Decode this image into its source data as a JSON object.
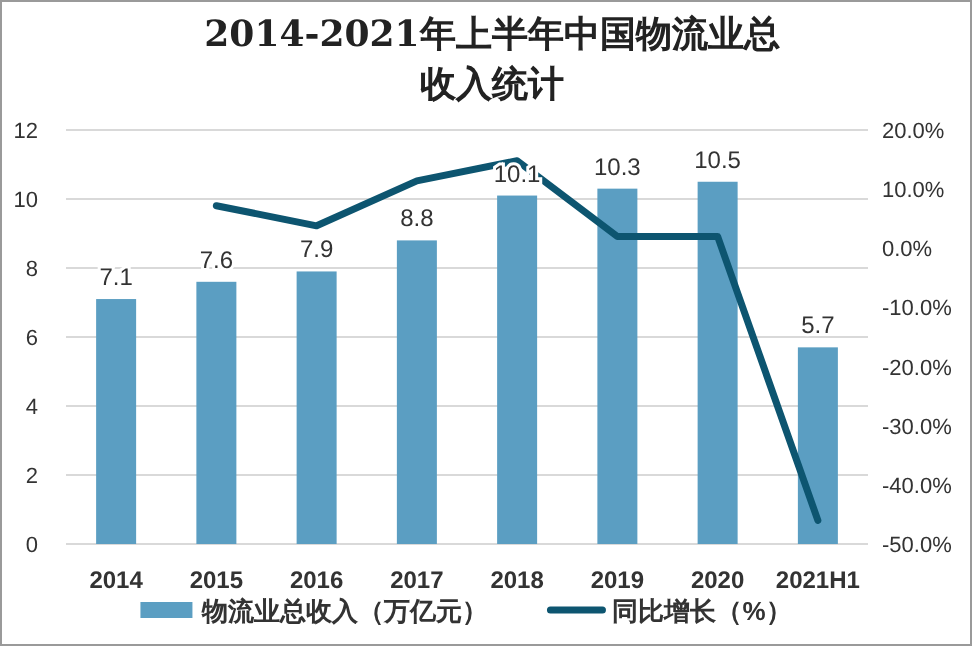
{
  "chart_data": {
    "type": "bar",
    "title": "2014-2021年上半年中国物流业总收入统计",
    "categories": [
      "2014",
      "2015",
      "2016",
      "2017",
      "2018",
      "2019",
      "2020",
      "2021H1"
    ],
    "series": [
      {
        "name": "物流业总收入（万亿元）",
        "color": "#5b9ec2",
        "values": [
          7.1,
          7.6,
          7.9,
          8.8,
          10.1,
          10.3,
          10.5,
          5.7
        ],
        "value_labels": [
          "7.1",
          "7.6",
          "7.9",
          "8.8",
          "10.1",
          "10.3",
          "10.5",
          "5.7"
        ]
      },
      {
        "name": "同比增长（%）",
        "type": "line",
        "axis": "y2",
        "color": "#0d5570",
        "values": [
          null,
          7.2,
          3.8,
          11.4,
          14.8,
          2.0,
          2.0,
          -46.0
        ]
      }
    ],
    "ylim": [
      0,
      12
    ],
    "yticks": [
      0,
      2,
      4,
      6,
      8,
      10,
      12
    ],
    "y2lim": [
      -50,
      20
    ],
    "y2ticks": [
      {
        "value": 20,
        "label": "20.0%"
      },
      {
        "value": 10,
        "label": "10.0%"
      },
      {
        "value": 0,
        "label": "0.0%"
      },
      {
        "value": -10,
        "label": "-10.0%"
      },
      {
        "value": -20,
        "label": "-20.0%"
      },
      {
        "value": -30,
        "label": "-30.0%"
      },
      {
        "value": -40,
        "label": "-40.0%"
      },
      {
        "value": -50,
        "label": "-50.0%"
      }
    ],
    "grid": "y",
    "legend": "bottom"
  }
}
